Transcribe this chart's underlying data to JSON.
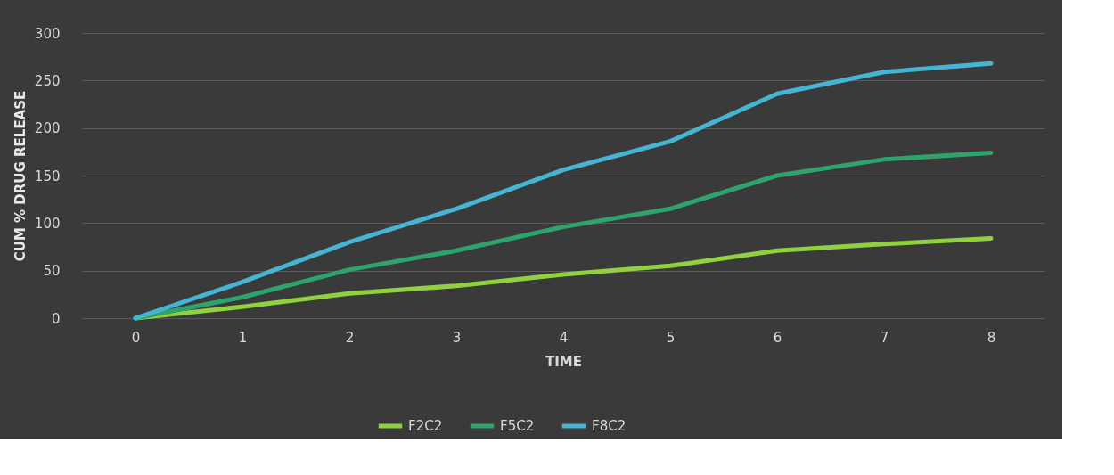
{
  "chart_data": {
    "type": "line",
    "xlabel": "TIME",
    "ylabel": "CUM % DRUG RELEASE",
    "categories": [
      "0",
      "1",
      "2",
      "3",
      "4",
      "5",
      "6",
      "7",
      "8"
    ],
    "series": [
      {
        "name": "F2C2",
        "color": "#8fd13f",
        "values": [
          0,
          12,
          26,
          34,
          46,
          55,
          71,
          78,
          84
        ]
      },
      {
        "name": "F5C2",
        "color": "#2ea36b",
        "values": [
          0,
          22,
          51,
          71,
          96,
          115,
          150,
          167,
          174
        ]
      },
      {
        "name": "F8C2",
        "color": "#46b4d3",
        "values": [
          0,
          38,
          80,
          115,
          156,
          186,
          236,
          259,
          268
        ]
      }
    ],
    "ylim": [
      0,
      300
    ],
    "yticks": [
      0,
      50,
      100,
      150,
      200,
      250,
      300
    ],
    "grid": "y",
    "legend": "bottom",
    "marker": "none",
    "line_style": "solid"
  }
}
